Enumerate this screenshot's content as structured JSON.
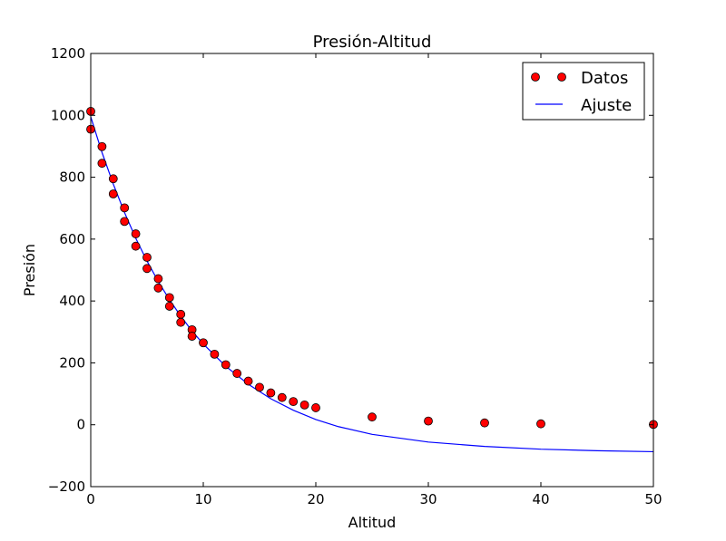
{
  "chart_data": {
    "type": "scatter",
    "title": "Presión-Altitud",
    "xlabel": "Altitud",
    "ylabel": "Presión",
    "xlim": [
      0,
      50
    ],
    "ylim": [
      -200,
      1200
    ],
    "xticks": [
      "0",
      "10",
      "20",
      "30",
      "40",
      "50"
    ],
    "yticks": [
      "−200",
      "0",
      "200",
      "400",
      "600",
      "800",
      "1000",
      "1200"
    ],
    "legend_position": "top-right",
    "series": [
      {
        "name": "Datos",
        "kind": "markers",
        "color": "#ff0000",
        "x": [
          0,
          0,
          1,
          1,
          2,
          2,
          3,
          3,
          4,
          4,
          5,
          5,
          6,
          6,
          7,
          7,
          8,
          8,
          9,
          9,
          10,
          11,
          12,
          13,
          14,
          15,
          16,
          17,
          18,
          19,
          20,
          25,
          30,
          35,
          40,
          50
        ],
        "y": [
          1013,
          955,
          899,
          845,
          795,
          746,
          701,
          657,
          617,
          577,
          541,
          505,
          472,
          442,
          411,
          383,
          357,
          331,
          307,
          286,
          265,
          228,
          194,
          166,
          141,
          121,
          103,
          88,
          75,
          64,
          55,
          25,
          12,
          6,
          3,
          1
        ]
      },
      {
        "name": "Ajuste",
        "kind": "line",
        "color": "#0000ff",
        "x": [
          0,
          1,
          2,
          3,
          4,
          5,
          6,
          7,
          8,
          9,
          10,
          12,
          14,
          16,
          18,
          20,
          22,
          25,
          30,
          35,
          40,
          45,
          50
        ],
        "y": [
          995,
          880,
          778,
          686,
          603,
          529,
          463,
          404,
          351,
          303,
          261,
          189,
          131,
          84,
          47,
          17,
          -6,
          -31,
          -56,
          -70,
          -79,
          -84,
          -87
        ]
      }
    ]
  }
}
